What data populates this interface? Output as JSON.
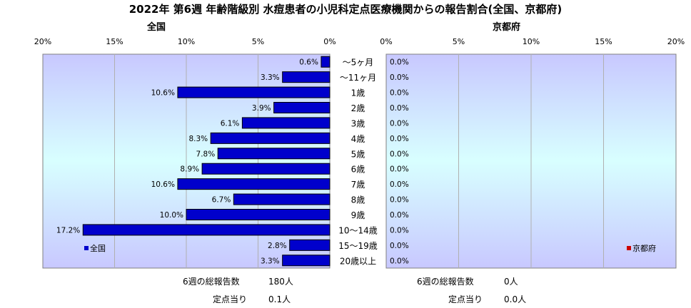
{
  "title": "2022年 第6週 年齢階級別 水痘患者の小児科定点医療機関からの報告割合(全国、京都府)",
  "colors": {
    "national_bar": "#0000CC",
    "kyoto_bar": "#CC0000",
    "plot_bg_top": "#C8C8FF",
    "plot_bg_mid": "#D8FFFF",
    "plot_bg_bottom": "#C8C8FF",
    "gridline": "#B0B0B0"
  },
  "chart_data": [
    {
      "type": "bar",
      "orientation": "horizontal",
      "panel_title": "全国",
      "categories": [
        "～5ヶ月",
        "～11ヶ月",
        "1歳",
        "2歳",
        "3歳",
        "4歳",
        "5歳",
        "6歳",
        "7歳",
        "8歳",
        "9歳",
        "10～14歳",
        "15～19歳",
        "20歳以上"
      ],
      "series": [
        {
          "name": "全国",
          "values": [
            0.6,
            3.3,
            10.6,
            3.9,
            6.1,
            8.3,
            7.8,
            8.9,
            10.6,
            6.7,
            10.0,
            17.2,
            2.8,
            3.3
          ],
          "labels": [
            "0.6%",
            "3.3%",
            "10.6%",
            "3.9%",
            "6.1%",
            "8.3%",
            "7.8%",
            "8.9%",
            "10.6%",
            "6.7%",
            "10.0%",
            "17.2%",
            "2.8%",
            "3.3%"
          ]
        }
      ],
      "xlim": [
        0,
        20
      ],
      "x_reversed": true,
      "xticks": [
        "20%",
        "15%",
        "10%",
        "5%",
        "0%"
      ],
      "grid": true,
      "legend_position": "bottom-left"
    },
    {
      "type": "bar",
      "orientation": "horizontal",
      "panel_title": "京都府",
      "categories": [
        "～5ヶ月",
        "～11ヶ月",
        "1歳",
        "2歳",
        "3歳",
        "4歳",
        "5歳",
        "6歳",
        "7歳",
        "8歳",
        "9歳",
        "10～14歳",
        "15～19歳",
        "20歳以上"
      ],
      "series": [
        {
          "name": "京都府",
          "values": [
            0,
            0,
            0,
            0,
            0,
            0,
            0,
            0,
            0,
            0,
            0,
            0,
            0,
            0
          ],
          "labels": [
            "0.0%",
            "0.0%",
            "0.0%",
            "0.0%",
            "0.0%",
            "0.0%",
            "0.0%",
            "0.0%",
            "0.0%",
            "0.0%",
            "0.0%",
            "0.0%",
            "0.0%",
            "0.0%"
          ]
        }
      ],
      "xlim": [
        0,
        20
      ],
      "x_reversed": false,
      "xticks": [
        "0%",
        "5%",
        "10%",
        "15%",
        "20%"
      ],
      "grid": true,
      "legend_position": "bottom-right"
    }
  ],
  "summary": {
    "national": {
      "total_label": "6週の総報告数",
      "total_value": "180人",
      "per_site_label": "定点当り",
      "per_site_value": "0.1人"
    },
    "kyoto": {
      "total_label": "6週の総報告数",
      "total_value": "0人",
      "per_site_label": "定点当り",
      "per_site_value": "0.0人"
    }
  }
}
